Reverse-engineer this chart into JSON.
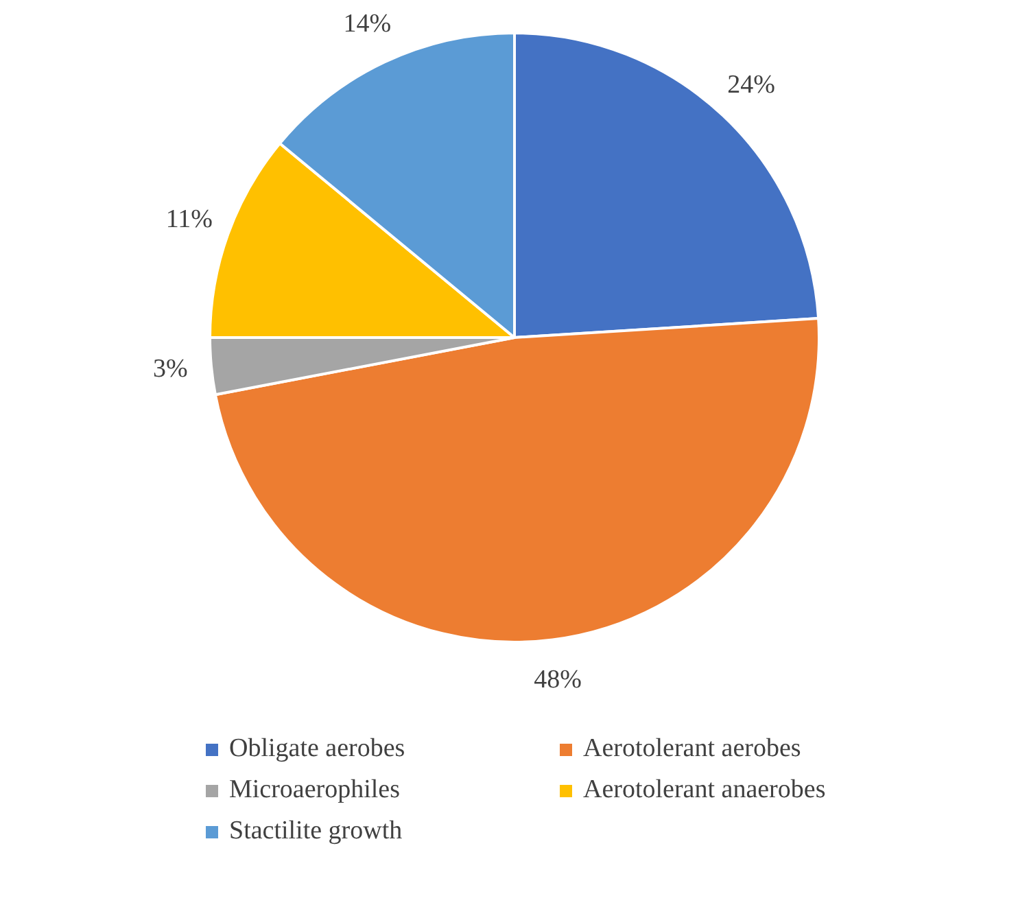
{
  "chart_data": {
    "type": "pie",
    "categories": [
      "Obligate aerobes",
      "Aerotolerant aerobes",
      "Microaerophiles",
      "Aerotolerant anaerobes",
      "Stactilite growth"
    ],
    "values": [
      24,
      48,
      3,
      11,
      14
    ],
    "colors": [
      "#4472c4",
      "#ed7d31",
      "#a5a5a5",
      "#ffc000",
      "#5b9bd5"
    ],
    "value_labels": [
      "24%",
      "48%",
      "3%",
      "11%",
      "14%"
    ],
    "legend": "bottom"
  }
}
